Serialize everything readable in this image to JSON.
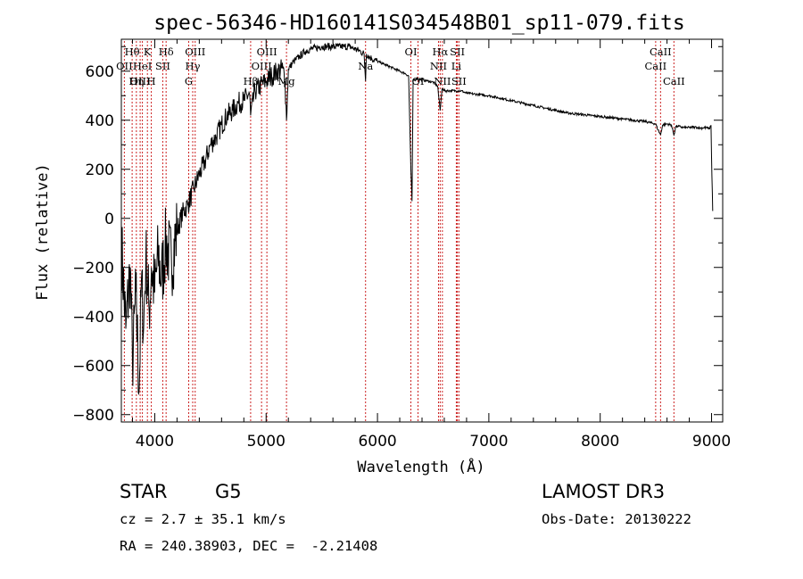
{
  "chart_data": {
    "type": "line",
    "title": "spec-56346-HD160141S034548B01_sp11-079.fits",
    "xlabel": "Wavelength (Å)",
    "ylabel": "Flux (relative)",
    "xlim": [
      3700,
      9100
    ],
    "ylim": [
      -830,
      730
    ],
    "xticks": [
      4000,
      5000,
      6000,
      7000,
      8000,
      9000
    ],
    "yticks": [
      -800,
      -600,
      -400,
      -200,
      0,
      200,
      400,
      600
    ],
    "series": [
      {
        "name": "flux",
        "x": [
          3700,
          3740,
          3780,
          3800,
          3830,
          3860,
          3880,
          3900,
          3920,
          3950,
          3970,
          4000,
          4030,
          4060,
          4100,
          4150,
          4200,
          4250,
          4300,
          4350,
          4400,
          4450,
          4500,
          4550,
          4600,
          4650,
          4700,
          4750,
          4800,
          4850,
          4861,
          4900,
          4950,
          5000,
          5050,
          5100,
          5150,
          5170,
          5183,
          5200,
          5250,
          5300,
          5350,
          5400,
          5450,
          5500,
          5550,
          5600,
          5650,
          5700,
          5750,
          5800,
          5850,
          5880,
          5893,
          5900,
          5950,
          6000,
          6050,
          6100,
          6150,
          6200,
          6250,
          6280,
          6300,
          6310,
          6320,
          6350,
          6400,
          6450,
          6500,
          6540,
          6563,
          6580,
          6600,
          6650,
          6700,
          6750,
          6800,
          6900,
          7000,
          7100,
          7200,
          7300,
          7400,
          7500,
          7600,
          7700,
          7800,
          7900,
          8000,
          8100,
          8200,
          8300,
          8400,
          8498,
          8520,
          8542,
          8560,
          8600,
          8640,
          8662,
          8680,
          8700,
          8750,
          8800,
          8850,
          8900,
          8950,
          8980,
          8995,
          9000,
          9010
        ],
        "y": [
          -100,
          -450,
          -200,
          -600,
          -300,
          -700,
          -250,
          -450,
          -150,
          -380,
          -200,
          -300,
          -150,
          -250,
          -100,
          -180,
          -50,
          20,
          60,
          120,
          180,
          230,
          300,
          330,
          380,
          420,
          440,
          470,
          480,
          510,
          420,
          520,
          540,
          560,
          580,
          600,
          610,
          560,
          400,
          610,
          640,
          660,
          680,
          690,
          695,
          700,
          700,
          700,
          700,
          700,
          700,
          690,
          680,
          670,
          560,
          670,
          650,
          640,
          630,
          620,
          610,
          600,
          590,
          580,
          200,
          70,
          560,
          570,
          565,
          560,
          555,
          540,
          440,
          530,
          520,
          520,
          520,
          520,
          510,
          505,
          500,
          490,
          480,
          470,
          460,
          450,
          440,
          430,
          425,
          420,
          415,
          410,
          405,
          400,
          395,
          385,
          360,
          340,
          380,
          385,
          380,
          340,
          375,
          375,
          370,
          370,
          372,
          368,
          370,
          365,
          380,
          250,
          30
        ]
      }
    ],
    "spectral_lines": [
      {
        "label": "Hθ",
        "wavelength": 3797,
        "row": 1
      },
      {
        "label": "OII",
        "wavelength": 3727,
        "row": 2
      },
      {
        "label": "OIII",
        "wavelength": 3869,
        "row": 3
      },
      {
        "label": "K",
        "wavelength": 3934,
        "row": 1
      },
      {
        "label": "HeI",
        "wavelength": 3889,
        "row": 2
      },
      {
        "label": "Hη",
        "wavelength": 3835,
        "row": 3
      },
      {
        "label": "H",
        "wavelength": 3969,
        "row": 3
      },
      {
        "label": "Hδ",
        "wavelength": 4102,
        "row": 1
      },
      {
        "label": "SII",
        "wavelength": 4072,
        "row": 2
      },
      {
        "label": "OIII",
        "wavelength": 4363,
        "row": 1
      },
      {
        "label": "Hγ",
        "wavelength": 4341,
        "row": 2
      },
      {
        "label": "G",
        "wavelength": 4305,
        "row": 3
      },
      {
        "label": "Hβ",
        "wavelength": 4861,
        "row": 3
      },
      {
        "label": "OIII",
        "wavelength": 5007,
        "row": 1
      },
      {
        "label": "OIII",
        "wavelength": 4959,
        "row": 2
      },
      {
        "label": "Mg",
        "wavelength": 5183,
        "row": 3
      },
      {
        "label": "Na",
        "wavelength": 5893,
        "row": 2
      },
      {
        "label": "OI",
        "wavelength": 6300,
        "row": 1
      },
      {
        "label": "OI",
        "wavelength": 6364,
        "row": 3
      },
      {
        "label": "Hα",
        "wavelength": 6563,
        "row": 1
      },
      {
        "label": "NII",
        "wavelength": 6548,
        "row": 2
      },
      {
        "label": "NII",
        "wavelength": 6583,
        "row": 3
      },
      {
        "label": "SII",
        "wavelength": 6717,
        "row": 1
      },
      {
        "label": "Li",
        "wavelength": 6708,
        "row": 2
      },
      {
        "label": "SII",
        "wavelength": 6731,
        "row": 3
      },
      {
        "label": "CaII",
        "wavelength": 8542,
        "row": 1
      },
      {
        "label": "CaII",
        "wavelength": 8498,
        "row": 2
      },
      {
        "label": "CaII",
        "wavelength": 8662,
        "row": 3
      }
    ]
  },
  "info": {
    "class": "STAR",
    "subclass": "G5",
    "survey": "LAMOST DR3",
    "cz": "cz = 2.7 ± 35.1 km/s",
    "obs_date": "Obs-Date: 20130222",
    "coords": "RA = 240.38903, DEC =  -2.21408"
  }
}
